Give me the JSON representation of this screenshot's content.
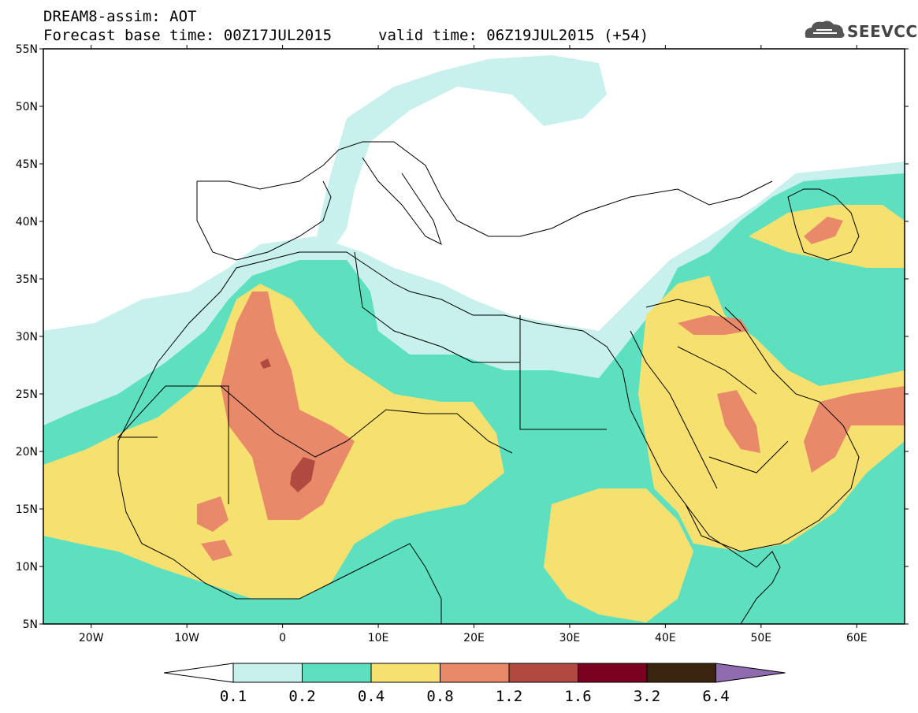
{
  "header": {
    "line1": "DREAM8-assim: AOT",
    "line2": "Forecast base time: 00Z17JUL2015",
    "valid": "valid time: 06Z19JUL2015 (+54)",
    "logo_text": "SEEVCCC",
    "logo_icon": "cloud-icon"
  },
  "map": {
    "lat_labels": [
      "55N",
      "50N",
      "45N",
      "40N",
      "35N",
      "30N",
      "25N",
      "20N",
      "15N",
      "10N",
      "5N"
    ],
    "lon_labels": [
      "20W",
      "10W",
      "0",
      "10E",
      "20E",
      "30E",
      "40E",
      "50E",
      "60E"
    ],
    "lat_range": [
      5,
      55
    ],
    "lon_range": [
      -25,
      65
    ]
  },
  "colorbar": {
    "labels": [
      "0.1",
      "0.2",
      "0.4",
      "0.8",
      "1.2",
      "1.6",
      "3.2",
      "6.4"
    ],
    "colors": [
      "#c8f0ec",
      "#5de0c0",
      "#f5e070",
      "#e8896a",
      "#b04a40",
      "#7a0020",
      "#3a2410",
      "#8f6bb0"
    ]
  }
}
